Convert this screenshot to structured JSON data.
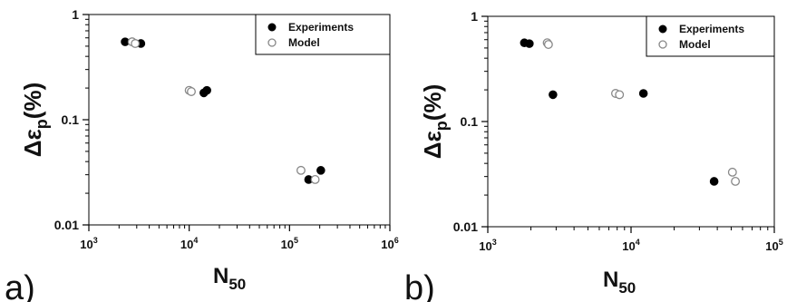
{
  "chart_data": [
    {
      "type": "scatter",
      "panel_label": "a)",
      "xlabel_main": "N",
      "xlabel_sub": "50",
      "ylabel_main": "Δε",
      "ylabel_sub": "p",
      "ylabel_unit": "(%)",
      "xscale": "log",
      "yscale": "log",
      "xlim": [
        1000,
        1000000
      ],
      "ylim": [
        0.01,
        1
      ],
      "xticks": [
        1000,
        10000,
        100000,
        1000000
      ],
      "xtick_labels": [
        {
          "base": "10",
          "exp": "3"
        },
        {
          "base": "10",
          "exp": "4"
        },
        {
          "base": "10",
          "exp": "5"
        },
        {
          "base": "10",
          "exp": "6"
        }
      ],
      "yticks": [
        0.01,
        0.1,
        1
      ],
      "ytick_labels": [
        "0.01",
        "0.1",
        "1"
      ],
      "grid": false,
      "legend_position": "top-right",
      "series": [
        {
          "name": "Experiments",
          "marker": "filled",
          "color": "#000000",
          "points": [
            [
              2300,
              0.55
            ],
            [
              3300,
              0.53
            ],
            [
              14000,
              0.18
            ],
            [
              15000,
              0.19
            ],
            [
              155000,
              0.027
            ],
            [
              205000,
              0.033
            ]
          ]
        },
        {
          "name": "Model",
          "marker": "open",
          "color": "#888888",
          "points": [
            [
              2700,
              0.55
            ],
            [
              2900,
              0.53
            ],
            [
              10000,
              0.19
            ],
            [
              10500,
              0.185
            ],
            [
              130000,
              0.033
            ],
            [
              180000,
              0.027
            ]
          ]
        }
      ]
    },
    {
      "type": "scatter",
      "panel_label": "b)",
      "xlabel_main": "N",
      "xlabel_sub": "50",
      "ylabel_main": "Δε",
      "ylabel_sub": "p",
      "ylabel_unit": "(%)",
      "xscale": "log",
      "yscale": "log",
      "xlim": [
        1000,
        100000
      ],
      "ylim": [
        0.01,
        1
      ],
      "xticks": [
        1000,
        10000,
        100000
      ],
      "xtick_labels": [
        {
          "base": "10",
          "exp": "3"
        },
        {
          "base": "10",
          "exp": "4"
        },
        {
          "base": "10",
          "exp": "5"
        }
      ],
      "yticks": [
        0.01,
        0.1,
        1
      ],
      "ytick_labels": [
        "0.01",
        "0.1",
        "1"
      ],
      "grid": false,
      "legend_position": "top-right",
      "series": [
        {
          "name": "Experiments",
          "marker": "filled",
          "color": "#000000",
          "points": [
            [
              1800,
              0.56
            ],
            [
              1950,
              0.55
            ],
            [
              2850,
              0.18
            ],
            [
              12200,
              0.185
            ],
            [
              38000,
              0.027
            ]
          ]
        },
        {
          "name": "Model",
          "marker": "open",
          "color": "#888888",
          "points": [
            [
              2600,
              0.56
            ],
            [
              2650,
              0.54
            ],
            [
              7800,
              0.185
            ],
            [
              8300,
              0.18
            ],
            [
              51000,
              0.033
            ],
            [
              53500,
              0.027
            ]
          ]
        }
      ]
    }
  ]
}
